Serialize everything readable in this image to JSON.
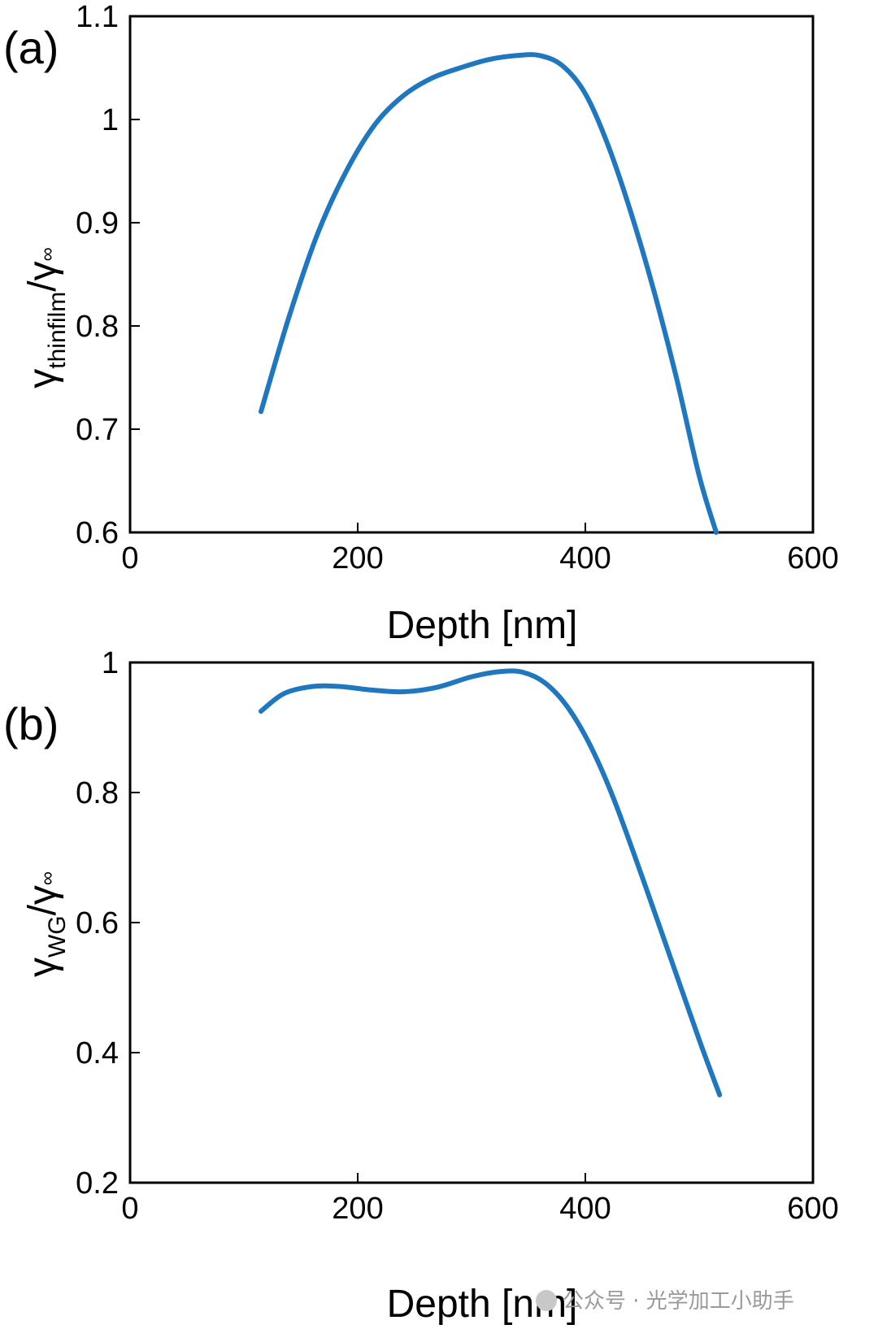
{
  "chart_data": [
    {
      "type": "line",
      "panel_label": "(a)",
      "xlabel": "Depth [nm]",
      "ylabel": {
        "base": "γ",
        "sub": "thinfilm",
        "denominator": "/γ",
        "den_sub": "∞"
      },
      "xlim": [
        0,
        600
      ],
      "ylim": [
        0.6,
        1.1
      ],
      "xticks": [
        0,
        200,
        400,
        600
      ],
      "xtick_labels": [
        "0",
        "200",
        "400",
        "600"
      ],
      "yticks": [
        0.6,
        0.7,
        0.8,
        0.9,
        1.0,
        1.1
      ],
      "ytick_labels": [
        "0.6",
        "0.7",
        "0.8",
        "0.9",
        "1",
        "1.1"
      ],
      "series": [
        {
          "name": "thinfilm",
          "color": "#1f77c0",
          "x": [
            115,
            140,
            165,
            190,
            215,
            240,
            265,
            290,
            315,
            340,
            360,
            380,
            400,
            420,
            440,
            460,
            480,
            500,
            515
          ],
          "y": [
            0.717,
            0.81,
            0.89,
            0.95,
            0.995,
            1.023,
            1.04,
            1.05,
            1.058,
            1.062,
            1.062,
            1.052,
            1.025,
            0.975,
            0.91,
            0.835,
            0.75,
            0.655,
            0.6
          ]
        }
      ]
    },
    {
      "type": "line",
      "panel_label": "(b)",
      "xlabel": "Depth [nm]",
      "ylabel": {
        "base": "γ",
        "sub": "WG",
        "denominator": "/γ",
        "den_sub": "∞"
      },
      "xlim": [
        0,
        600
      ],
      "ylim": [
        0.2,
        1.0
      ],
      "xticks": [
        0,
        200,
        400,
        600
      ],
      "xtick_labels": [
        "0",
        "200",
        "400",
        "600"
      ],
      "yticks": [
        0.2,
        0.4,
        0.6,
        0.8,
        1.0
      ],
      "ytick_labels": [
        "0.2",
        "0.4",
        "0.6",
        "0.8",
        "1"
      ],
      "series": [
        {
          "name": "WG",
          "color": "#1f77c0",
          "x": [
            115,
            135,
            160,
            185,
            210,
            240,
            270,
            300,
            325,
            345,
            365,
            385,
            405,
            425,
            450,
            475,
            500,
            518
          ],
          "y": [
            0.925,
            0.952,
            0.963,
            0.963,
            0.958,
            0.955,
            0.962,
            0.978,
            0.986,
            0.985,
            0.968,
            0.93,
            0.87,
            0.79,
            0.67,
            0.545,
            0.42,
            0.335
          ]
        }
      ]
    }
  ],
  "watermark": "公众号 · 光学加工小助手"
}
